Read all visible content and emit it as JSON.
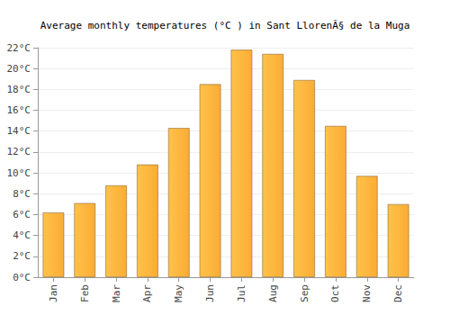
{
  "chart_data": {
    "type": "bar",
    "title": "Average monthly temperatures (°C ) in Sant LlorenÃ§ de la Muga",
    "categories": [
      "Jan",
      "Feb",
      "Mar",
      "Apr",
      "May",
      "Jun",
      "Jul",
      "Aug",
      "Sep",
      "Oct",
      "Nov",
      "Dec"
    ],
    "values": [
      6.2,
      7.1,
      8.8,
      10.8,
      14.3,
      18.5,
      21.8,
      21.4,
      18.9,
      14.5,
      9.7,
      7.0
    ],
    "color": "#fbac34",
    "ylim": [
      0,
      22
    ],
    "yticks": [
      {
        "value": 0,
        "label": "0°C"
      },
      {
        "value": 2,
        "label": "2°C"
      },
      {
        "value": 4,
        "label": "4°C"
      },
      {
        "value": 6,
        "label": "6°C"
      },
      {
        "value": 8,
        "label": "8°C"
      },
      {
        "value": 10,
        "label": "10°C"
      },
      {
        "value": 12,
        "label": "12°C"
      },
      {
        "value": 14,
        "label": "14°C"
      },
      {
        "value": 16,
        "label": "16°C"
      },
      {
        "value": 18,
        "label": "18°C"
      },
      {
        "value": 20,
        "label": "20°C"
      },
      {
        "value": 22,
        "label": "22°C"
      }
    ],
    "grid": true
  }
}
